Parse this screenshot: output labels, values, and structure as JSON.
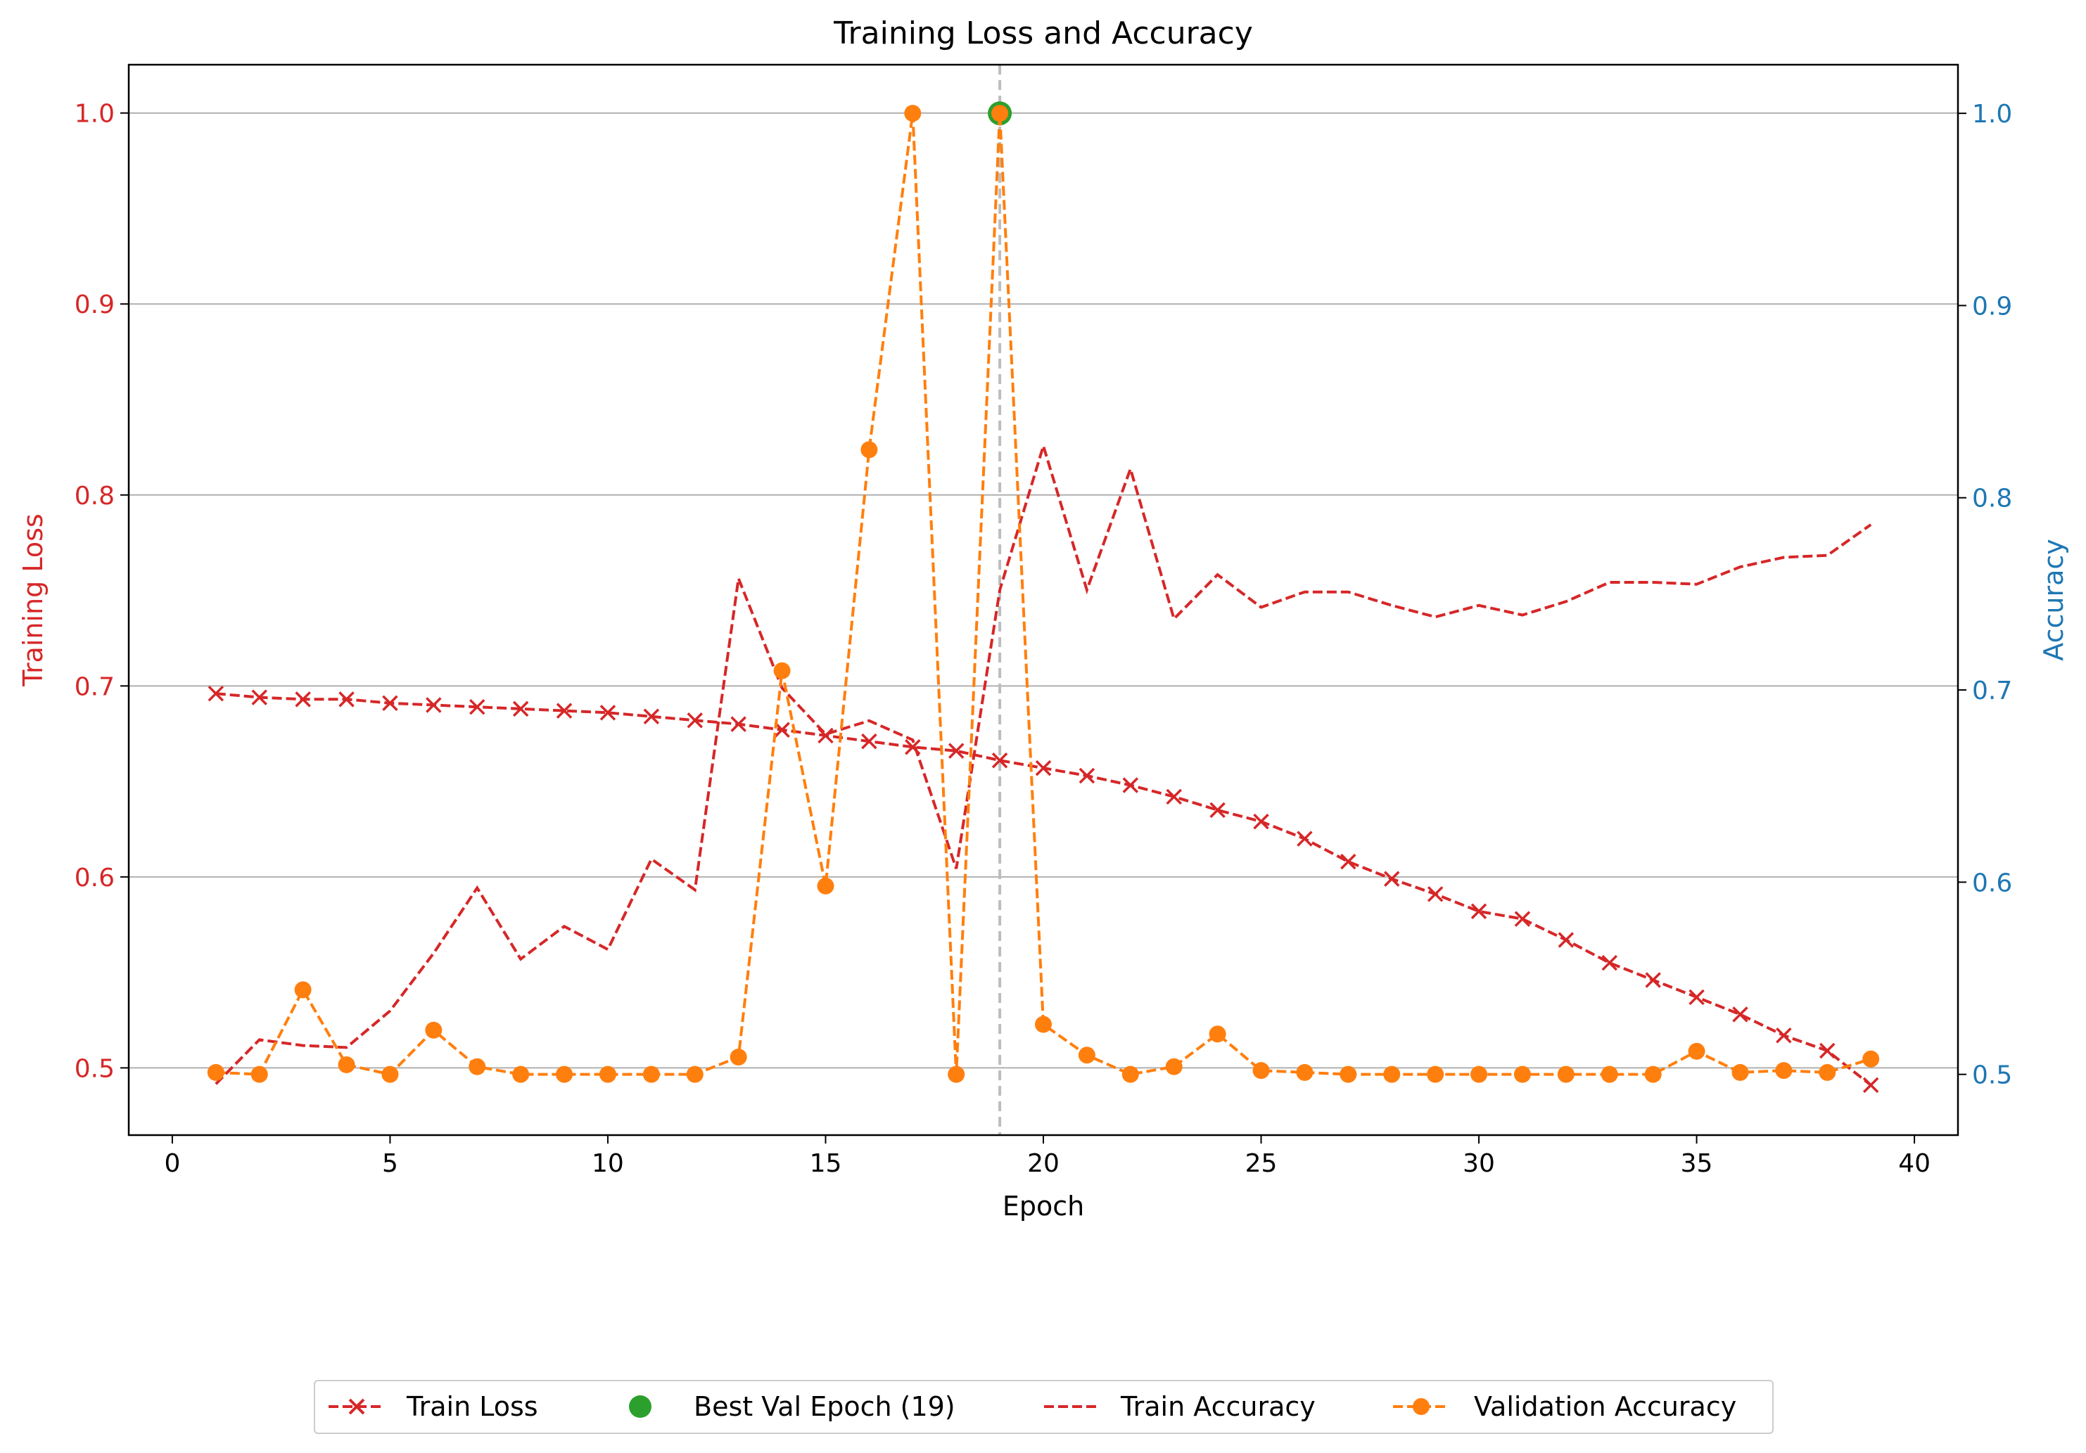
{
  "chart_data": {
    "type": "line",
    "title": "Training Loss and Accuracy",
    "xlabel": "Epoch",
    "ylabel_left": "Training Loss",
    "ylabel_right": "Accuracy",
    "xlim": [
      -1,
      41
    ],
    "ylim_left": [
      0.4648,
      1.0253
    ],
    "ylim_right": [
      0.4684,
      1.0253
    ],
    "xticks": [
      0,
      5,
      10,
      15,
      20,
      25,
      30,
      35,
      40
    ],
    "yticks_left": [
      0.5,
      0.6,
      0.7,
      0.8,
      0.9,
      1.0
    ],
    "yticks_right": [
      0.5,
      0.6,
      0.7,
      0.8,
      0.9,
      1.0
    ],
    "grid": "horizontal",
    "legend_position": "bottom-center",
    "best_epoch": 19,
    "best_value": 1.0,
    "x": [
      1,
      2,
      3,
      4,
      5,
      6,
      7,
      8,
      9,
      10,
      11,
      12,
      13,
      14,
      15,
      16,
      17,
      18,
      19,
      20,
      21,
      22,
      23,
      24,
      25,
      26,
      27,
      28,
      29,
      30,
      31,
      32,
      33,
      34,
      35,
      36,
      37,
      38,
      39
    ],
    "series": [
      {
        "name": "Train Loss",
        "axis": "left",
        "color": "#d62728",
        "marker": "x",
        "values": [
          0.696,
          0.694,
          0.693,
          0.693,
          0.691,
          0.69,
          0.689,
          0.688,
          0.687,
          0.686,
          0.684,
          0.682,
          0.68,
          0.677,
          0.674,
          0.671,
          0.668,
          0.666,
          0.661,
          0.657,
          0.653,
          0.648,
          0.642,
          0.635,
          0.629,
          0.62,
          0.608,
          0.599,
          0.591,
          0.582,
          0.578,
          0.567,
          0.555,
          0.546,
          0.537,
          0.528,
          0.517,
          0.509,
          0.491
        ]
      },
      {
        "name": "Best Val Epoch (19)",
        "axis": "right",
        "color": "#2ca02c",
        "marker": "o"
      },
      {
        "name": "Train Accuracy",
        "axis": "right",
        "color": "#d62728",
        "marker": "none",
        "values": [
          0.495,
          0.518,
          0.515,
          0.514,
          0.533,
          0.563,
          0.597,
          0.56,
          0.577,
          0.565,
          0.612,
          0.596,
          0.758,
          0.701,
          0.677,
          0.684,
          0.674,
          0.607,
          0.752,
          0.827,
          0.752,
          0.815,
          0.737,
          0.76,
          0.743,
          0.751,
          0.751,
          0.744,
          0.738,
          0.744,
          0.739,
          0.746,
          0.756,
          0.756,
          0.755,
          0.764,
          0.769,
          0.77,
          0.786
        ]
      },
      {
        "name": "Validation Accuracy",
        "axis": "right",
        "color": "#ff7f0e",
        "marker": "o",
        "values": [
          0.501,
          0.5,
          0.544,
          0.505,
          0.5,
          0.523,
          0.504,
          0.5,
          0.5,
          0.5,
          0.5,
          0.5,
          0.509,
          0.71,
          0.598,
          0.825,
          1.0,
          0.5,
          1.0,
          0.526,
          0.51,
          0.5,
          0.504,
          0.521,
          0.502,
          0.501,
          0.5,
          0.5,
          0.5,
          0.5,
          0.5,
          0.5,
          0.5,
          0.5,
          0.512,
          0.501,
          0.502,
          0.501,
          0.508
        ]
      }
    ]
  }
}
